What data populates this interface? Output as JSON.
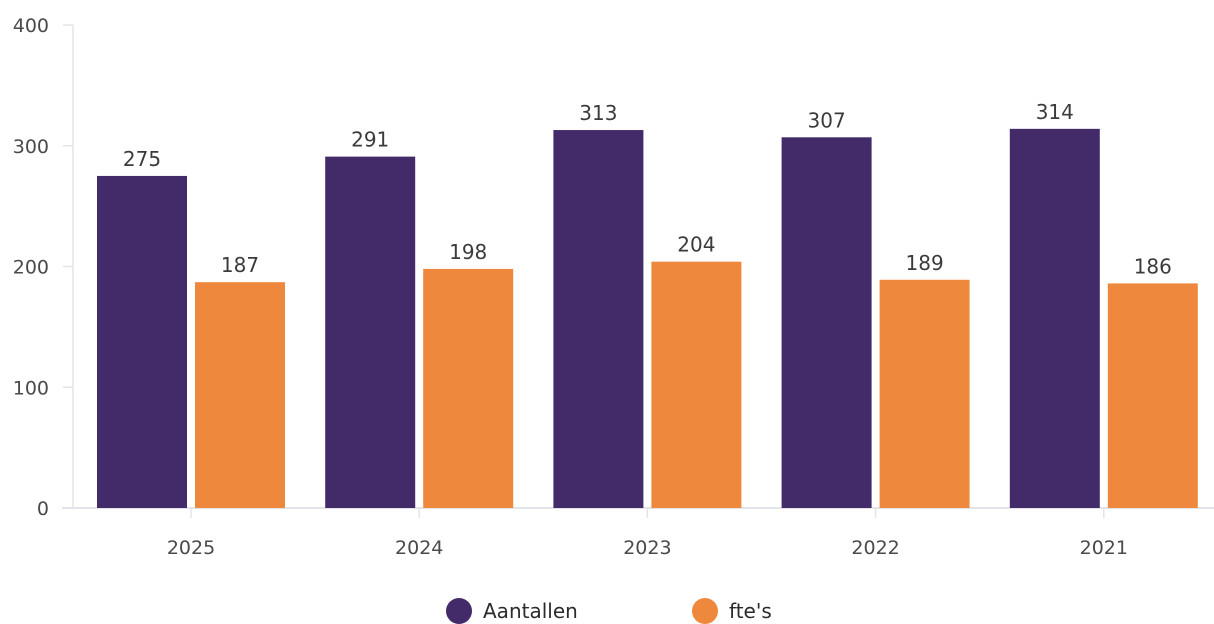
{
  "chart_data": {
    "type": "bar",
    "title": "",
    "xlabel": "",
    "ylabel": "",
    "categories": [
      "2025",
      "2024",
      "2023",
      "2022",
      "2021"
    ],
    "series": [
      {
        "name": "Aantallen",
        "values": [
          275,
          291,
          313,
          307,
          314
        ],
        "color": "#432a68"
      },
      {
        "name": "fte's",
        "values": [
          187,
          198,
          204,
          189,
          186
        ],
        "color": "#ee883c"
      }
    ],
    "ylim": [
      0,
      400
    ],
    "yticks": [
      0,
      100,
      200,
      300,
      400
    ],
    "grid": false,
    "legend_position": "bottom-center",
    "data_labels": true
  }
}
